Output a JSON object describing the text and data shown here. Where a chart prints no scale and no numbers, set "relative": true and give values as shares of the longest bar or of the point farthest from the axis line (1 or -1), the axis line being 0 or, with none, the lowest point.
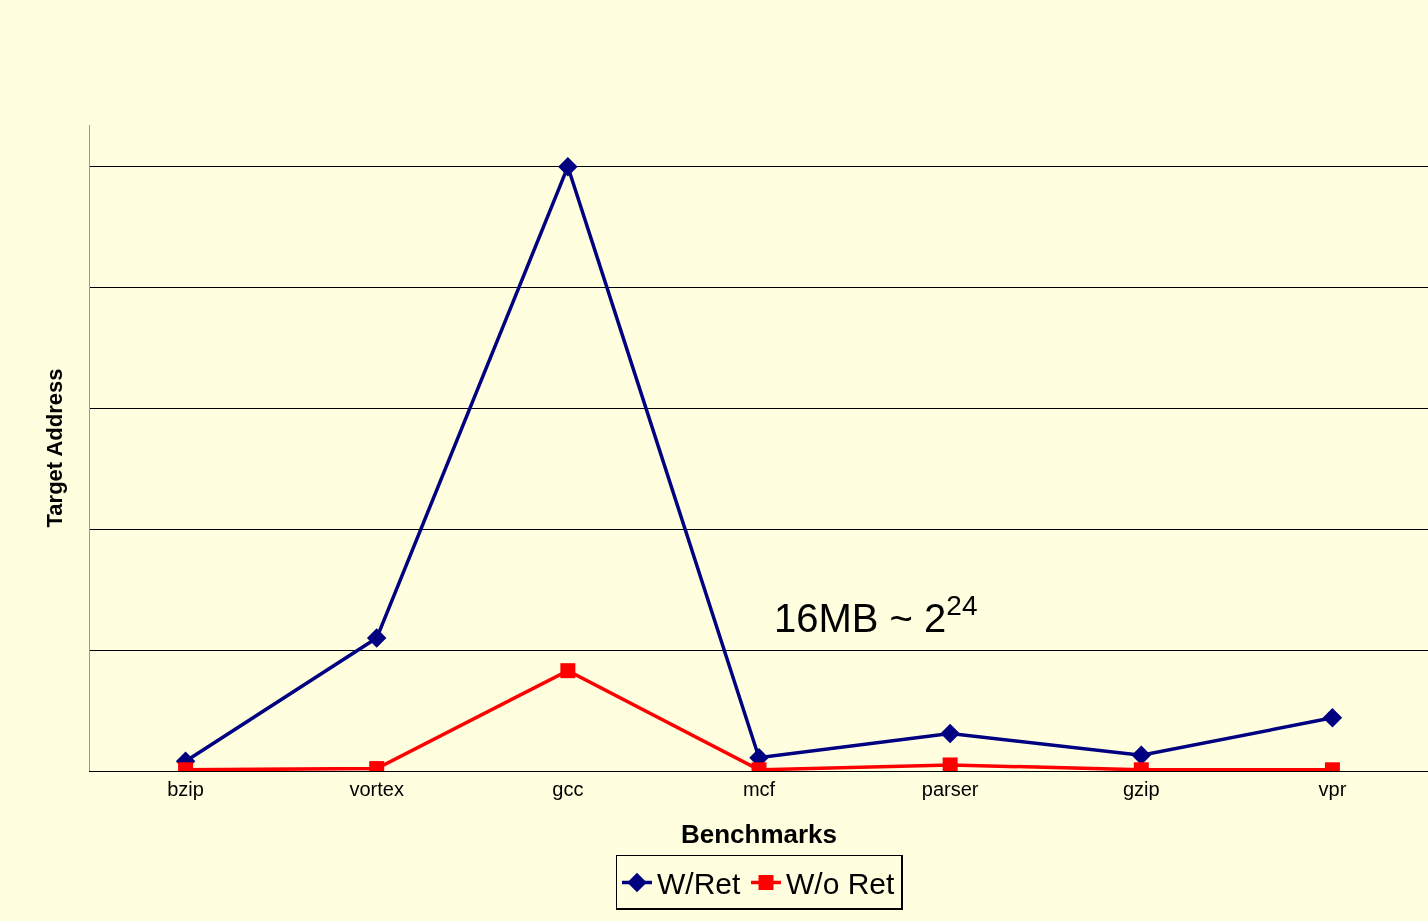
{
  "chart_data": {
    "type": "line",
    "relative": true,
    "xlabel": "Benchmarks",
    "ylabel": "Target Address",
    "categories": [
      "bzip",
      "vortex",
      "gcc",
      "mcf",
      "parser",
      "gzip",
      "vpr"
    ],
    "series": [
      {
        "name": "W/Ret",
        "color": "#000080",
        "marker": "diamond",
        "values": [
          0.016,
          0.22,
          1,
          0.022,
          0.062,
          0.026,
          0.088
        ]
      },
      {
        "name": "W/o Ret",
        "color": "#ff0000",
        "marker": "square",
        "values": [
          0.002,
          0.004,
          0.166,
          0.002,
          0.01,
          0.002,
          0.002
        ]
      }
    ],
    "annotations": [
      "16MB ~ 2$^{24}$"
    ],
    "grid": "y",
    "legend": "bottom",
    "line_style": "solid"
  }
}
